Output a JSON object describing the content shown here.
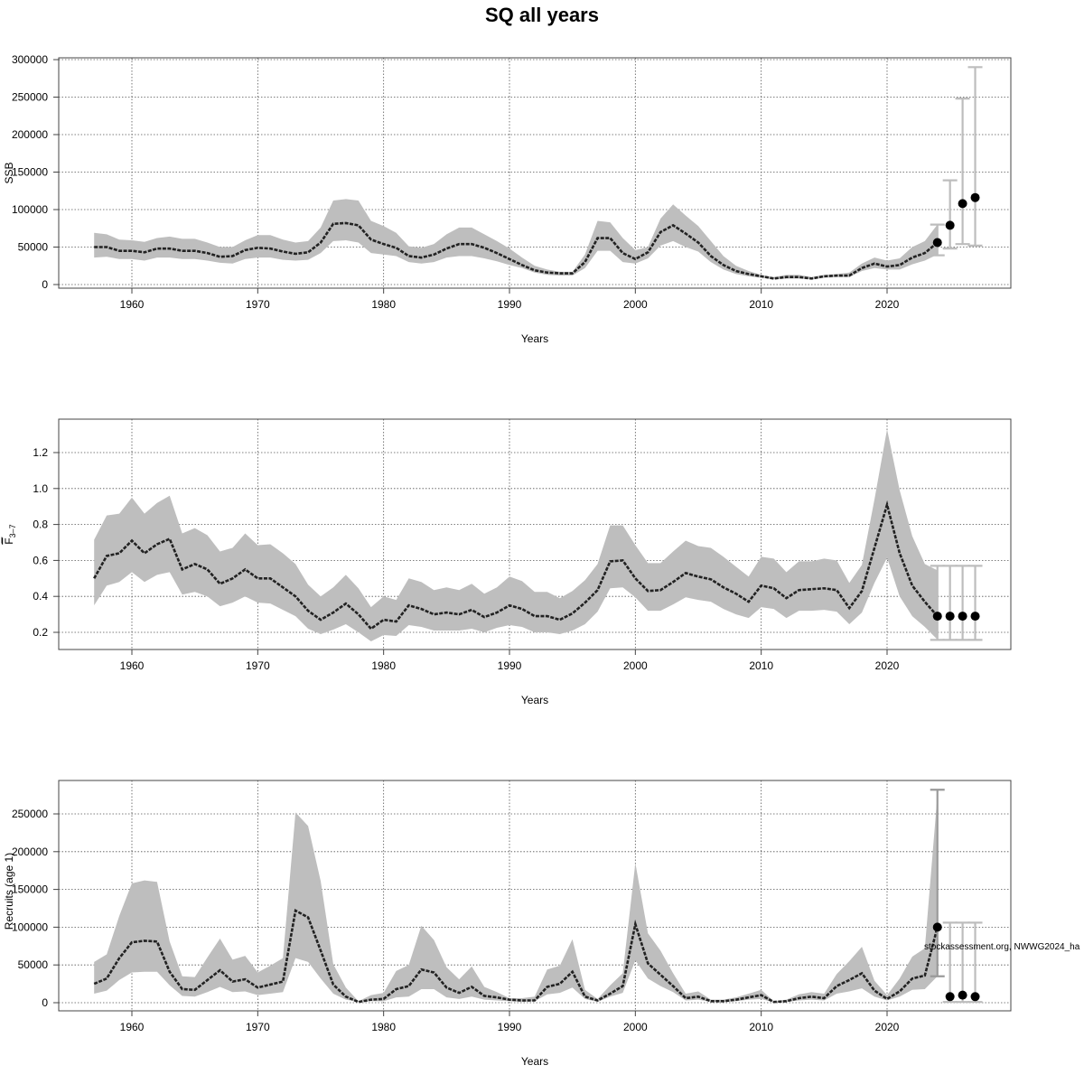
{
  "title": "SQ all years",
  "watermark": "stockassessment.org, NWWG2024_ha",
  "colors": {
    "band": "#bebebe",
    "line": "#222222",
    "point": "#000000",
    "errorbar": "#bdbdbd",
    "errorbar_dark": "#9a9a9a",
    "grid": "#555555"
  },
  "chart_data": [
    {
      "type": "line",
      "ylabel": "SSB",
      "xlabel": "Years",
      "xlim": [
        1957,
        2027
      ],
      "ylim": [
        0,
        300000
      ],
      "xticks": [
        1960,
        1970,
        1980,
        1990,
        2000,
        2010,
        2020
      ],
      "yticks": [
        0,
        50000,
        100000,
        150000,
        200000,
        250000,
        300000
      ],
      "grid": true,
      "x_start": 1957,
      "mean": [
        50000,
        50000,
        45000,
        45000,
        43000,
        48000,
        48000,
        45000,
        45000,
        42000,
        37000,
        38000,
        46000,
        49000,
        48000,
        44000,
        41000,
        43000,
        56000,
        81000,
        82000,
        79000,
        60000,
        54000,
        49000,
        38000,
        36000,
        40000,
        48000,
        54000,
        54000,
        49000,
        42000,
        34000,
        26000,
        19000,
        16000,
        15000,
        15000,
        30000,
        62000,
        62000,
        42000,
        34000,
        43000,
        70000,
        79000,
        68000,
        56000,
        38000,
        26000,
        18000,
        14000,
        11000,
        8000,
        10000,
        10000,
        8000,
        11000,
        12000,
        12000,
        22000,
        28000,
        24000,
        26000,
        36000,
        42000,
        56000
      ],
      "upper": [
        69000,
        67000,
        60000,
        59000,
        57000,
        62000,
        64000,
        61000,
        61000,
        56000,
        50000,
        50000,
        59000,
        66000,
        66000,
        60000,
        56000,
        58000,
        76000,
        112000,
        114000,
        112000,
        85000,
        78000,
        69000,
        51000,
        49000,
        54000,
        67000,
        76000,
        76000,
        67000,
        58000,
        48000,
        36000,
        25000,
        20000,
        17000,
        17000,
        40000,
        85000,
        83000,
        62000,
        46000,
        50000,
        88000,
        107000,
        92000,
        78000,
        58000,
        38000,
        25000,
        18000,
        13000,
        10000,
        13000,
        13000,
        10000,
        13000,
        14000,
        16000,
        28000,
        36000,
        32000,
        35000,
        50000,
        58000,
        80000
      ],
      "lower": [
        36000,
        37000,
        34000,
        34000,
        32000,
        36000,
        36000,
        34000,
        34000,
        32000,
        29000,
        28000,
        34000,
        36000,
        36000,
        33000,
        32000,
        33000,
        42000,
        58000,
        59000,
        56000,
        42000,
        40000,
        38000,
        30000,
        28000,
        30000,
        36000,
        38000,
        38000,
        35000,
        31000,
        26000,
        22000,
        16000,
        13000,
        12000,
        12000,
        22000,
        45000,
        45000,
        30000,
        28000,
        35000,
        52000,
        58000,
        50000,
        44000,
        30000,
        20000,
        14000,
        11000,
        9000,
        7000,
        8000,
        8000,
        7000,
        9000,
        10000,
        10000,
        18000,
        22000,
        20000,
        20000,
        27000,
        32000,
        40000
      ],
      "forecast": {
        "years": [
          2024,
          2025,
          2026,
          2027
        ],
        "values": [
          56000,
          79000,
          108000,
          116000
        ],
        "low": [
          39000,
          48000,
          54000,
          52000
        ],
        "high": [
          80000,
          139000,
          248000,
          290000
        ]
      }
    },
    {
      "type": "line",
      "ylabel": "F",
      "ylabel_sub": "3–7",
      "xlabel": "Years",
      "xlim": [
        1957,
        2027
      ],
      "ylim": [
        0.15,
        1.35
      ],
      "xticks": [
        1960,
        1970,
        1980,
        1990,
        2000,
        2010,
        2020
      ],
      "yticks": [
        0.2,
        0.4,
        0.6,
        0.8,
        1.0,
        1.2
      ],
      "ytick_labels": [
        "0.2",
        "0.4",
        "0.6",
        "0.8",
        "1.0",
        "1.2"
      ],
      "grid": true,
      "x_start": 1957,
      "mean": [
        0.5,
        0.625,
        0.64,
        0.71,
        0.64,
        0.69,
        0.72,
        0.55,
        0.58,
        0.55,
        0.47,
        0.5,
        0.55,
        0.5,
        0.5,
        0.45,
        0.4,
        0.32,
        0.27,
        0.31,
        0.36,
        0.3,
        0.22,
        0.27,
        0.26,
        0.35,
        0.33,
        0.3,
        0.31,
        0.3,
        0.325,
        0.285,
        0.31,
        0.35,
        0.33,
        0.29,
        0.29,
        0.27,
        0.305,
        0.365,
        0.435,
        0.595,
        0.6,
        0.5,
        0.43,
        0.435,
        0.48,
        0.53,
        0.51,
        0.495,
        0.45,
        0.415,
        0.37,
        0.46,
        0.445,
        0.39,
        0.435,
        0.44,
        0.445,
        0.435,
        0.335,
        0.43,
        0.67,
        0.91,
        0.64,
        0.46,
        0.37,
        0.29
      ],
      "upper": [
        0.715,
        0.85,
        0.86,
        0.95,
        0.86,
        0.92,
        0.96,
        0.75,
        0.78,
        0.74,
        0.65,
        0.67,
        0.75,
        0.685,
        0.69,
        0.64,
        0.58,
        0.465,
        0.4,
        0.45,
        0.52,
        0.445,
        0.34,
        0.4,
        0.38,
        0.5,
        0.48,
        0.435,
        0.45,
        0.435,
        0.47,
        0.415,
        0.45,
        0.51,
        0.485,
        0.425,
        0.425,
        0.39,
        0.43,
        0.49,
        0.58,
        0.795,
        0.795,
        0.685,
        0.585,
        0.585,
        0.65,
        0.71,
        0.68,
        0.67,
        0.62,
        0.565,
        0.51,
        0.62,
        0.61,
        0.535,
        0.595,
        0.595,
        0.61,
        0.6,
        0.475,
        0.575,
        0.94,
        1.33,
        0.99,
        0.735,
        0.58,
        0.545
      ],
      "lower": [
        0.35,
        0.46,
        0.48,
        0.535,
        0.48,
        0.52,
        0.535,
        0.41,
        0.425,
        0.4,
        0.345,
        0.365,
        0.4,
        0.365,
        0.36,
        0.325,
        0.29,
        0.22,
        0.19,
        0.215,
        0.245,
        0.2,
        0.15,
        0.185,
        0.18,
        0.24,
        0.23,
        0.21,
        0.21,
        0.21,
        0.22,
        0.2,
        0.225,
        0.24,
        0.23,
        0.2,
        0.2,
        0.19,
        0.21,
        0.245,
        0.315,
        0.445,
        0.45,
        0.395,
        0.32,
        0.32,
        0.355,
        0.395,
        0.38,
        0.37,
        0.33,
        0.3,
        0.28,
        0.34,
        0.33,
        0.28,
        0.32,
        0.32,
        0.325,
        0.315,
        0.245,
        0.31,
        0.475,
        0.615,
        0.4,
        0.29,
        0.23,
        0.16
      ],
      "forecast": {
        "years": [
          2024,
          2025,
          2026,
          2027
        ],
        "values": [
          0.29,
          0.29,
          0.29,
          0.29
        ],
        "low": [
          0.158,
          0.158,
          0.158,
          0.158
        ],
        "high": [
          0.57,
          0.57,
          0.57,
          0.57
        ]
      }
    },
    {
      "type": "line",
      "ylabel": "Recruits (age 1)",
      "xlabel": "Years",
      "xlim": [
        1957,
        2027
      ],
      "ylim": [
        0,
        250000
      ],
      "xticks": [
        1960,
        1970,
        1980,
        1990,
        2000,
        2010,
        2020
      ],
      "yticks": [
        0,
        50000,
        100000,
        150000,
        200000,
        250000
      ],
      "grid": true,
      "x_start": 1957,
      "mean": [
        25000,
        32000,
        59000,
        80000,
        82000,
        81000,
        41000,
        18000,
        17000,
        30000,
        43000,
        28000,
        31000,
        20000,
        24000,
        28000,
        122000,
        113000,
        69000,
        24000,
        8000,
        1000,
        4000,
        5000,
        18000,
        22000,
        44000,
        40000,
        20000,
        13000,
        21000,
        9000,
        7000,
        4000,
        3000,
        3000,
        21000,
        25000,
        41000,
        8000,
        3000,
        12000,
        22000,
        104000,
        52000,
        37000,
        22000,
        6000,
        8000,
        2000,
        2000,
        4000,
        7000,
        10000,
        1000,
        2000,
        6000,
        8000,
        6000,
        22000,
        30000,
        39000,
        16000,
        5000,
        15000,
        32000,
        36000,
        100000
      ],
      "upper": [
        54000,
        64000,
        115000,
        158000,
        162000,
        160000,
        81000,
        35000,
        34000,
        60000,
        85000,
        57000,
        62000,
        40000,
        49000,
        59000,
        252000,
        234000,
        161000,
        51000,
        20000,
        2000,
        10000,
        13000,
        42000,
        50000,
        102000,
        83000,
        47000,
        31000,
        48000,
        21000,
        14000,
        6000,
        6000,
        8000,
        44000,
        49000,
        84000,
        17000,
        5000,
        23000,
        39000,
        185000,
        92000,
        69000,
        39000,
        12000,
        15000,
        4000,
        4000,
        7000,
        12000,
        17000,
        2000,
        4000,
        11000,
        14000,
        12000,
        38000,
        55000,
        74000,
        29000,
        10000,
        32000,
        61000,
        72000,
        275000
      ],
      "lower": [
        12000,
        16000,
        30000,
        40000,
        41000,
        41000,
        23000,
        9000,
        8000,
        14000,
        21000,
        14000,
        15000,
        10000,
        12000,
        14000,
        59000,
        54000,
        32000,
        12000,
        4000,
        1000,
        2000,
        2000,
        7000,
        8000,
        18000,
        18000,
        7000,
        5000,
        8000,
        4000,
        3000,
        2000,
        1000,
        2000,
        11000,
        13000,
        20000,
        5000,
        1000,
        8000,
        13000,
        56000,
        32000,
        22000,
        14000,
        3000,
        4000,
        1000,
        1000,
        2000,
        4000,
        5000,
        500,
        1000,
        3000,
        4000,
        3000,
        12000,
        15000,
        19000,
        8000,
        3000,
        8000,
        17000,
        18000,
        35000
      ],
      "forecast": {
        "years": [
          2024,
          2025,
          2026,
          2027
        ],
        "values": [
          100000,
          8000,
          10000,
          8000
        ],
        "low": [
          35000,
          1000,
          1000,
          1000
        ],
        "high": [
          282000,
          106000,
          106000,
          106000
        ]
      }
    }
  ]
}
